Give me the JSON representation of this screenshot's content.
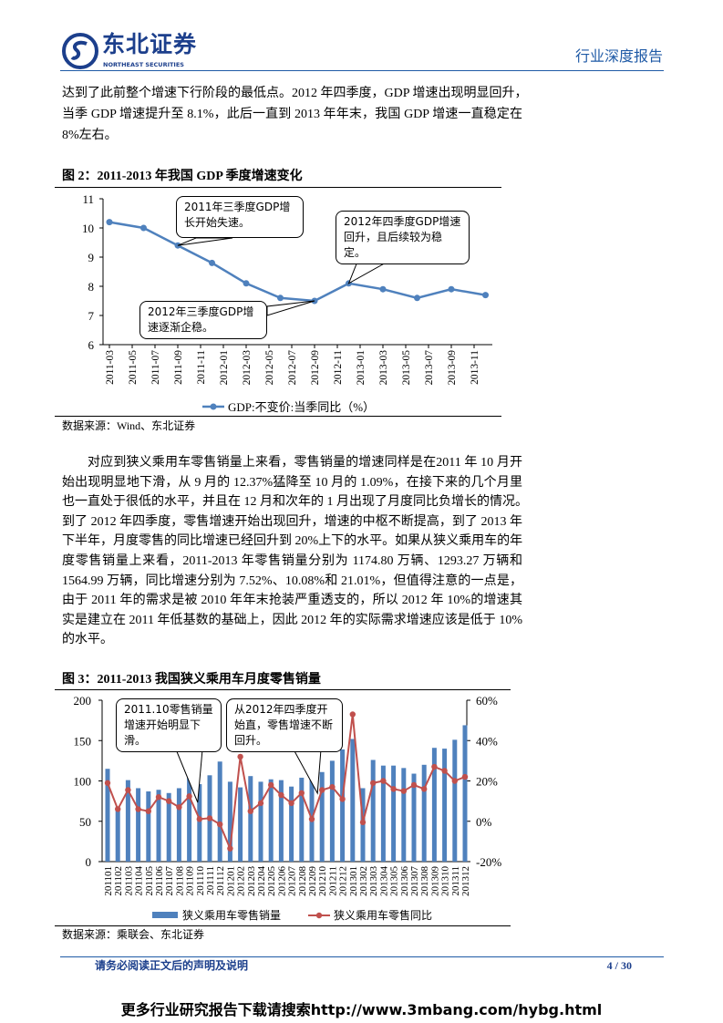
{
  "header": {
    "logo_cn": "东北证券",
    "logo_en": "NORTHEAST SECURITIES",
    "report_type": "行业深度报告",
    "brand_color": "#1c3f8c"
  },
  "paragraph1": [
    "达到了此前整个增速下行阶段的最低点。2012 年四季度，GDP 增速出现明显回升，",
    "当季 GDP 增速提升至 8.1%，此后一直到 2013 年年末，我国 GDP 增速一直稳定在",
    "8%左右。"
  ],
  "figure2": {
    "title": "图 2：2011-2013 年我国 GDP 季度增速变化",
    "source": "数据来源：Wind、东北证券",
    "callouts": [
      "2011年三季度GDP增长开始失速。",
      "2012年四季度GDP增速回升，且后续较为稳定。",
      "2012年三季度GDP增速逐渐企稳。"
    ]
  },
  "paragraph2": [
    "对应到狭义乘用车零售销量上来看，零售销量的增速同样是在2011 年 10 月开",
    "始出现明显地下滑，从 9 月的 12.37%猛降至 10 月的 1.09%，在接下来的几个月里",
    "也一直处于很低的水平，并且在 12 月和次年的 1 月出现了月度同比负增长的情况。",
    "到了 2012 年四季度，零售增速开始出现回升，增速的中枢不断提高，到了 2013 年",
    "下半年，月度零售的同比增速已经回升到 20%上下的水平。如果从狭义乘用车的年",
    "度零售销量上来看，2011-2013 年零售销量分别为 1174.80 万辆、1293.27 万辆和",
    "1564.99 万辆，同比增速分别为 7.52%、10.08%和 21.01%，但值得注意的一点是，",
    "由于 2011 年的需求是被 2010 年年末抢装严重透支的，所以 2012 年 10%的增速其",
    "实是建立在 2011 年低基数的基础上，因此 2012 年的实际需求增速应该是低于 10%",
    "的水平。"
  ],
  "figure3": {
    "title": "图 3：2011-2013 我国狭义乘用车月度零售销量",
    "source": "数据来源：乘联会、东北证券",
    "callouts": [
      "2011.10零售销量增速开始明显下滑。",
      "从2012年四季度开始直，零售增速不断回升。"
    ]
  },
  "footer": {
    "disclaimer": "请务必阅读正文后的声明及说明",
    "page": "4 / 30"
  },
  "download_banner": "更多行业研究报告下载请搜索http://www.3mbang.com/hybg.html",
  "chart_data": [
    {
      "type": "line",
      "title": "图 2：2011-2013 年我国 GDP 季度增速变化",
      "x_tick_labels": [
        "2011-03",
        "2011-05",
        "2011-07",
        "2011-09",
        "2011-11",
        "2012-01",
        "2012-03",
        "2012-05",
        "2012-07",
        "2012-09",
        "2012-11",
        "2013-01",
        "2013-03",
        "2013-05",
        "2013-07",
        "2013-09",
        "2013-11"
      ],
      "x": [
        "2011-03",
        "2011-06",
        "2011-09",
        "2011-12",
        "2012-03",
        "2012-06",
        "2012-09",
        "2012-12",
        "2013-03",
        "2013-06",
        "2013-09",
        "2013-12"
      ],
      "series": [
        {
          "name": "GDP:不变价:当季同比（%）",
          "color": "#4f81bd",
          "values": [
            10.2,
            10.0,
            9.4,
            8.8,
            8.1,
            7.6,
            7.5,
            8.1,
            7.9,
            7.6,
            7.9,
            7.7
          ]
        }
      ],
      "ylim": [
        6,
        11
      ],
      "yticks": [
        6,
        7,
        8,
        9,
        10,
        11
      ],
      "legend": "bottom",
      "grid": false
    },
    {
      "type": "bar+line",
      "title": "图 3：2011-2013 我国狭义乘用车月度零售销量",
      "categories": [
        "201101",
        "201102",
        "201103",
        "201104",
        "201105",
        "201106",
        "201107",
        "201108",
        "201109",
        "201110",
        "201111",
        "201112",
        "201201",
        "201202",
        "201203",
        "201204",
        "201205",
        "201206",
        "201207",
        "201208",
        "201209",
        "201210",
        "201211",
        "201212",
        "201301",
        "201302",
        "201303",
        "201304",
        "201305",
        "201306",
        "201307",
        "201308",
        "201309",
        "201310",
        "201311",
        "201312"
      ],
      "series": [
        {
          "name": "狭义乘用车零售销量",
          "type": "bar",
          "axis": "left",
          "color": "#4f81bd",
          "values": [
            115,
            68,
            101,
            91,
            87,
            89,
            85,
            91,
            110,
            96,
            107,
            124,
            99,
            92,
            106,
            99,
            102,
            101,
            93,
            104,
            111,
            111,
            125,
            139,
            152,
            91,
            126,
            119,
            119,
            116,
            109,
            120,
            141,
            140,
            151,
            169
          ]
        },
        {
          "name": "狭义乘用车零售同比",
          "type": "line",
          "axis": "right",
          "unit": "%",
          "color": "#c0504d",
          "values": [
            19,
            6,
            15.5,
            6,
            5,
            12,
            10,
            7,
            12.37,
            1.09,
            1.5,
            -1.5,
            -13.5,
            32,
            5,
            9,
            18,
            13,
            9,
            14,
            1,
            15.5,
            17,
            11,
            53,
            -0.5,
            19,
            20,
            16,
            15,
            18,
            16,
            27,
            25,
            20,
            22
          ]
        }
      ],
      "ylim_left": [
        0,
        200
      ],
      "yticks_left": [
        0,
        50,
        100,
        150,
        200
      ],
      "ylim_right": [
        -20,
        60
      ],
      "yticks_right": [
        "-20%",
        "0%",
        "20%",
        "40%",
        "60%"
      ],
      "legend": "bottom",
      "grid": false
    }
  ]
}
